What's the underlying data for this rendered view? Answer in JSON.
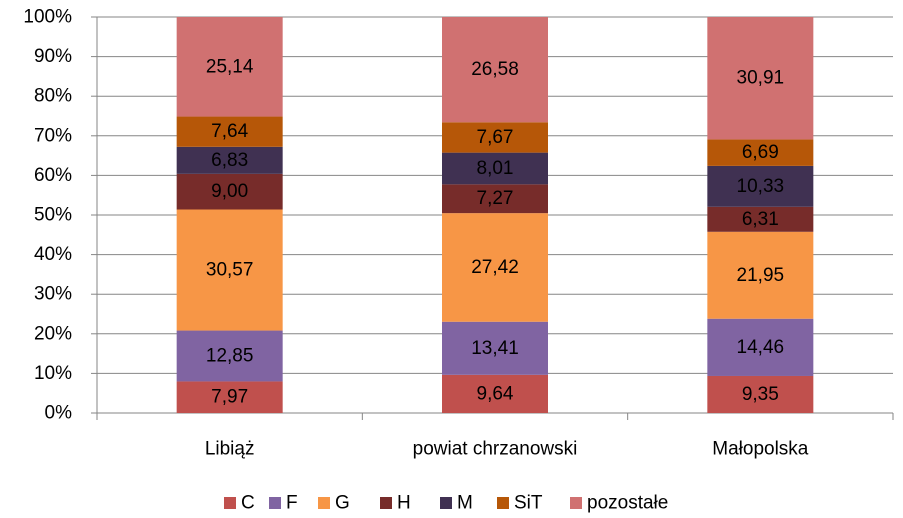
{
  "chart_data": {
    "type": "bar",
    "stacked": true,
    "percent_stacked": true,
    "categories": [
      "Libiąż",
      "powiat chrzanowski",
      "Małopolska"
    ],
    "series": [
      {
        "name": "C",
        "color": "#c0504d",
        "values": [
          7.97,
          9.64,
          9.35
        ],
        "labels": [
          "7,97",
          "9,64",
          "9,35"
        ]
      },
      {
        "name": "F",
        "color": "#8064a2",
        "values": [
          12.85,
          13.41,
          14.46
        ],
        "labels": [
          "12,85",
          "13,41",
          "14,46"
        ]
      },
      {
        "name": "G",
        "color": "#f79646",
        "values": [
          30.57,
          27.42,
          21.95
        ],
        "labels": [
          "30,57",
          "27,42",
          "21,95"
        ]
      },
      {
        "name": "H",
        "color": "#772c2a",
        "values": [
          9.0,
          7.27,
          6.31
        ],
        "labels": [
          "9,00",
          "7,27",
          "6,31"
        ]
      },
      {
        "name": "M",
        "color": "#403152",
        "values": [
          6.83,
          8.01,
          10.33
        ],
        "labels": [
          "6,83",
          "8,01",
          "10,33"
        ]
      },
      {
        "name": "SiT",
        "color": "#b65708",
        "values": [
          7.64,
          7.67,
          6.69
        ],
        "labels": [
          "7,64",
          "7,67",
          "6,69"
        ]
      },
      {
        "name": "pozostałe",
        "color": "#d07171",
        "values": [
          25.14,
          26.58,
          30.91
        ],
        "labels": [
          "25,14",
          "26,58",
          "30,91"
        ]
      }
    ],
    "y_ticks": [
      "0%",
      "10%",
      "20%",
      "30%",
      "40%",
      "50%",
      "60%",
      "70%",
      "80%",
      "90%",
      "100%"
    ],
    "ylim": [
      0,
      100
    ],
    "grid": true,
    "legend_position": "bottom"
  }
}
